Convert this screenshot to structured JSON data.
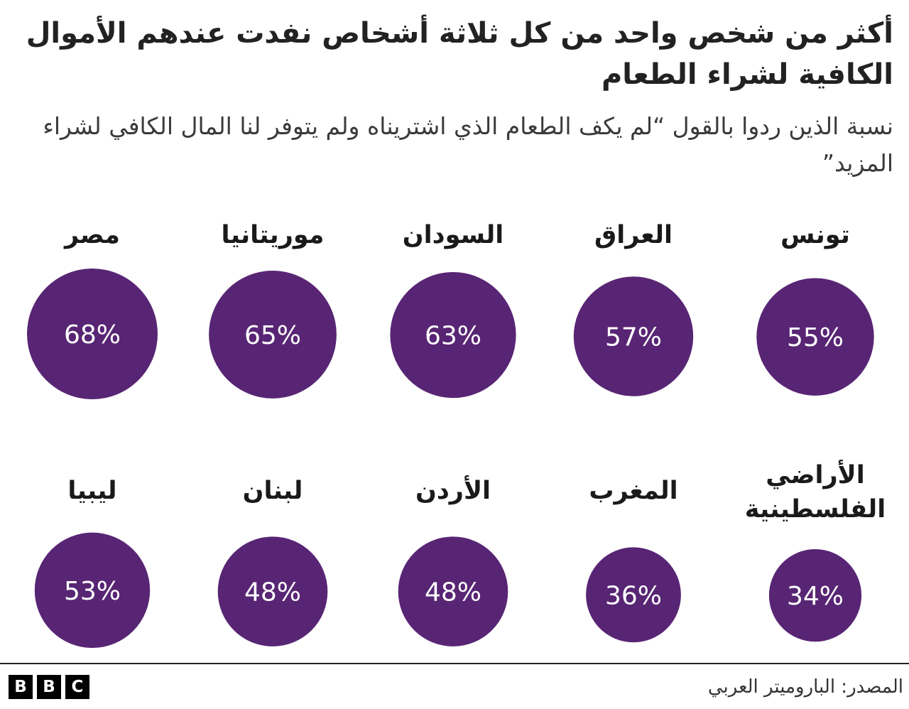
{
  "header": {
    "title": "أكثر من شخص واحد من كل ثلاثة أشخاص نفدت عندهم الأموال الكافية لشراء الطعام",
    "subtitle": "نسبة الذين ردوا بالقول “لم يكف الطعام الذي اشتريناه ولم يتوفر لنا المال الكافي لشراء المزيد”"
  },
  "colors": {
    "bubble": "#582574",
    "bubble_text": "#ffffff"
  },
  "chart_data": {
    "type": "bubble",
    "unit": "%",
    "items": [
      {
        "country": "تونس",
        "value": 55
      },
      {
        "country": "العراق",
        "value": 57
      },
      {
        "country": "السودان",
        "value": 63
      },
      {
        "country": "موريتانيا",
        "value": 65
      },
      {
        "country": "مصر",
        "value": 68
      },
      {
        "country": "الأراضي الفلسطينية",
        "value": 34
      },
      {
        "country": "المغرب",
        "value": 36
      },
      {
        "country": "الأردن",
        "value": 48
      },
      {
        "country": "لبنان",
        "value": 48
      },
      {
        "country": "ليبيا",
        "value": 53
      }
    ]
  },
  "footer": {
    "source": "المصدر: الباروميتر العربي",
    "logo_letters": [
      "B",
      "B",
      "C"
    ]
  }
}
